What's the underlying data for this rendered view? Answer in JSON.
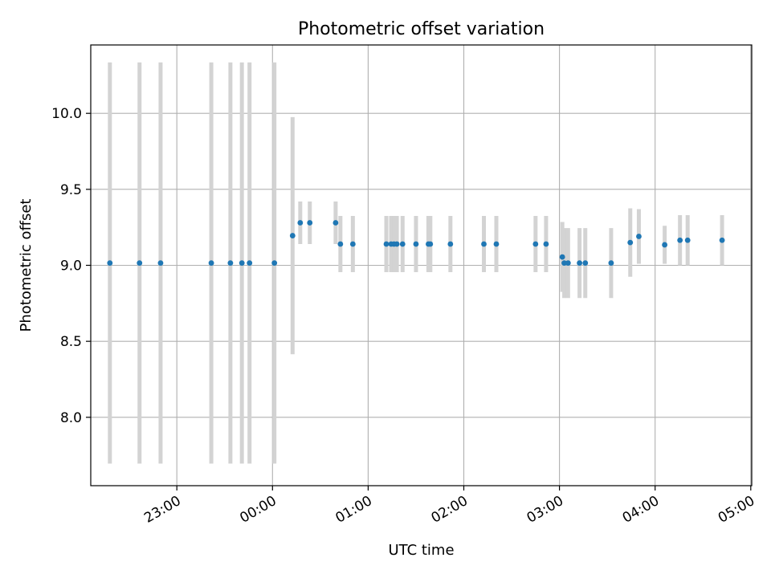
{
  "chart_data": {
    "type": "scatter",
    "title": "Photometric offset variation",
    "xlabel": "UTC time",
    "ylabel": "Photometric offset",
    "x_unit": "UTC time (hours; values past 24 are the following day)",
    "xlim": [
      22.1,
      29.01
    ],
    "ylim": [
      7.55,
      10.45
    ],
    "x_ticks": [
      {
        "value": 23,
        "label": "23:00"
      },
      {
        "value": 24,
        "label": "00:00"
      },
      {
        "value": 25,
        "label": "01:00"
      },
      {
        "value": 26,
        "label": "02:00"
      },
      {
        "value": 27,
        "label": "03:00"
      },
      {
        "value": 28,
        "label": "04:00"
      },
      {
        "value": 29,
        "label": "05:00"
      }
    ],
    "y_ticks": [
      {
        "value": 8.0,
        "label": "8.0"
      },
      {
        "value": 8.5,
        "label": "8.5"
      },
      {
        "value": 9.0,
        "label": "9.0"
      },
      {
        "value": 9.5,
        "label": "9.5"
      },
      {
        "value": 10.0,
        "label": "10.0"
      }
    ],
    "grid": true,
    "marker_color": "#1f77b4",
    "errorbar_color": "#d3d3d3",
    "points": [
      {
        "x": 22.3,
        "y": 9.015,
        "err": 1.32
      },
      {
        "x": 22.61,
        "y": 9.015,
        "err": 1.32
      },
      {
        "x": 22.83,
        "y": 9.015,
        "err": 1.32
      },
      {
        "x": 23.36,
        "y": 9.015,
        "err": 1.32
      },
      {
        "x": 23.56,
        "y": 9.015,
        "err": 1.32
      },
      {
        "x": 23.68,
        "y": 9.015,
        "err": 1.32
      },
      {
        "x": 23.76,
        "y": 9.015,
        "err": 1.32
      },
      {
        "x": 24.02,
        "y": 9.015,
        "err": 1.32
      },
      {
        "x": 24.21,
        "y": 9.195,
        "err": 0.78
      },
      {
        "x": 24.29,
        "y": 9.28,
        "err": 0.14
      },
      {
        "x": 24.39,
        "y": 9.28,
        "err": 0.14
      },
      {
        "x": 24.66,
        "y": 9.28,
        "err": 0.14
      },
      {
        "x": 24.71,
        "y": 9.14,
        "err": 0.185
      },
      {
        "x": 24.84,
        "y": 9.14,
        "err": 0.185
      },
      {
        "x": 25.19,
        "y": 9.14,
        "err": 0.185
      },
      {
        "x": 25.24,
        "y": 9.14,
        "err": 0.185
      },
      {
        "x": 25.27,
        "y": 9.14,
        "err": 0.185
      },
      {
        "x": 25.3,
        "y": 9.14,
        "err": 0.185
      },
      {
        "x": 25.36,
        "y": 9.14,
        "err": 0.185
      },
      {
        "x": 25.5,
        "y": 9.14,
        "err": 0.185
      },
      {
        "x": 25.63,
        "y": 9.14,
        "err": 0.185
      },
      {
        "x": 25.65,
        "y": 9.14,
        "err": 0.185
      },
      {
        "x": 25.86,
        "y": 9.14,
        "err": 0.185
      },
      {
        "x": 26.21,
        "y": 9.14,
        "err": 0.185
      },
      {
        "x": 26.34,
        "y": 9.14,
        "err": 0.185
      },
      {
        "x": 26.75,
        "y": 9.14,
        "err": 0.185
      },
      {
        "x": 26.86,
        "y": 9.14,
        "err": 0.185
      },
      {
        "x": 27.03,
        "y": 9.055,
        "err": 0.23
      },
      {
        "x": 27.05,
        "y": 9.015,
        "err": 0.23
      },
      {
        "x": 27.09,
        "y": 9.015,
        "err": 0.23
      },
      {
        "x": 27.21,
        "y": 9.015,
        "err": 0.23
      },
      {
        "x": 27.27,
        "y": 9.015,
        "err": 0.23
      },
      {
        "x": 27.54,
        "y": 9.015,
        "err": 0.23
      },
      {
        "x": 27.74,
        "y": 9.15,
        "err": 0.225
      },
      {
        "x": 27.83,
        "y": 9.19,
        "err": 0.18
      },
      {
        "x": 28.1,
        "y": 9.135,
        "err": 0.125
      },
      {
        "x": 28.26,
        "y": 9.165,
        "err": 0.165
      },
      {
        "x": 28.34,
        "y": 9.165,
        "err": 0.165
      },
      {
        "x": 28.7,
        "y": 9.165,
        "err": 0.165
      }
    ]
  }
}
